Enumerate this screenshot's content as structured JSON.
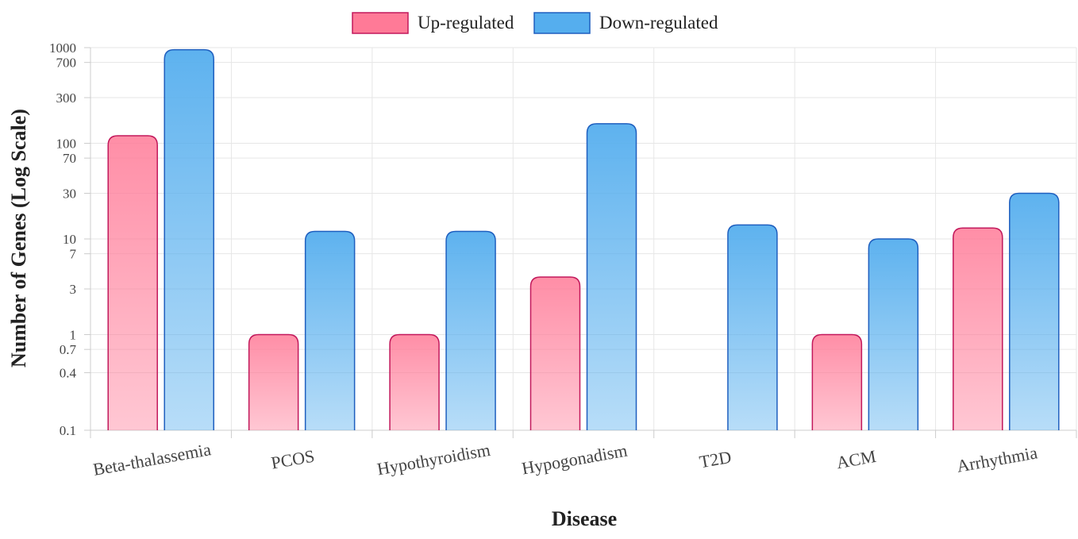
{
  "chart_data": {
    "type": "bar",
    "title": "",
    "xlabel": "Disease",
    "ylabel": "Number of Genes (Log Scale)",
    "yscale": "log",
    "ylim": [
      0.1,
      1000
    ],
    "yticks": [
      0.1,
      0.4,
      0.7,
      1,
      3,
      7,
      10,
      30,
      70,
      100,
      300,
      700,
      1000
    ],
    "grid": true,
    "legend_position": "top-center",
    "categories": [
      "Beta-thalassemia",
      "PCOS",
      "Hypothyroidism",
      "Hypogonadism",
      "T2D",
      "ACM",
      "Arrhythmia"
    ],
    "series": [
      {
        "name": "Up-regulated",
        "values": [
          120,
          1,
          1,
          4,
          null,
          1,
          13
        ],
        "color": "#ff7a97",
        "border": "#c2185b"
      },
      {
        "name": "Down-regulated",
        "values": [
          950,
          12,
          12,
          160,
          14,
          10,
          30
        ],
        "color": "#55aeee",
        "border": "#1f5fbf"
      }
    ]
  }
}
